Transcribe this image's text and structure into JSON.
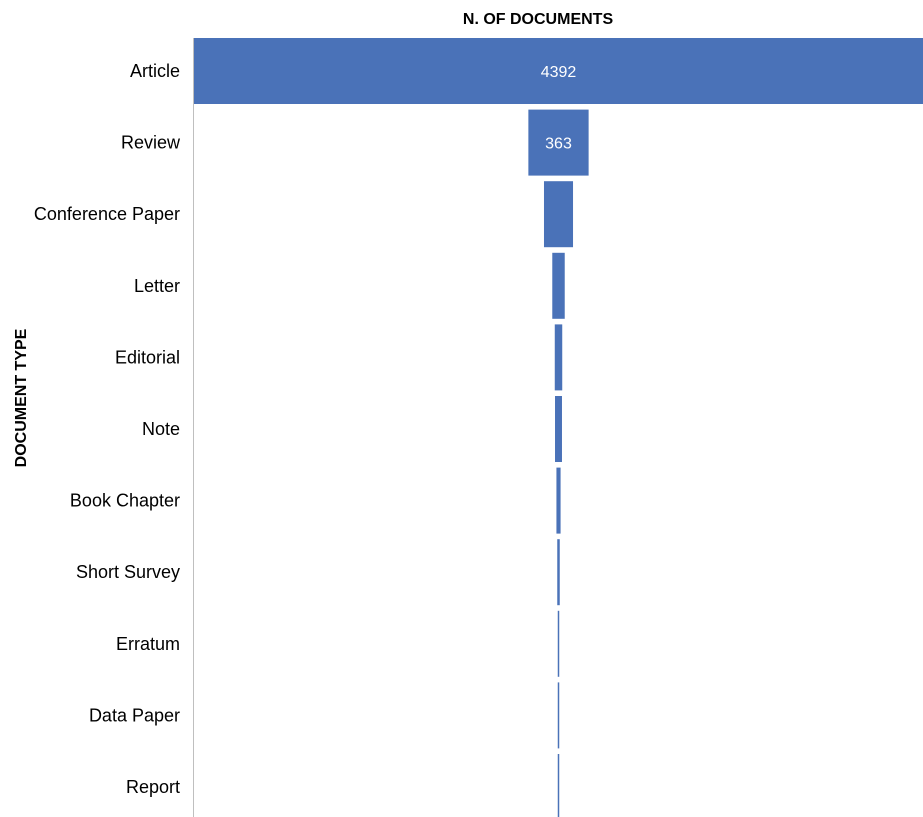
{
  "chart_data": {
    "type": "bar",
    "orientation": "funnel",
    "x_title": "N. OF DOCUMENTS",
    "y_title": "DOCUMENT TYPE",
    "categories": [
      "Article",
      "Review",
      "Conference Paper",
      "Letter",
      "Editorial",
      "Note",
      "Book Chapter",
      "Short Survey",
      "Erratum",
      "Data Paper",
      "Report"
    ],
    "values": [
      4392,
      363,
      175,
      75,
      45,
      42,
      25,
      15,
      5,
      4,
      2
    ],
    "data_labels": [
      "4392",
      "363",
      "",
      "",
      "",
      "",
      "",
      "",
      "",
      "",
      ""
    ],
    "bar_color": "#4a72b8",
    "grid": false,
    "legend": "none"
  }
}
